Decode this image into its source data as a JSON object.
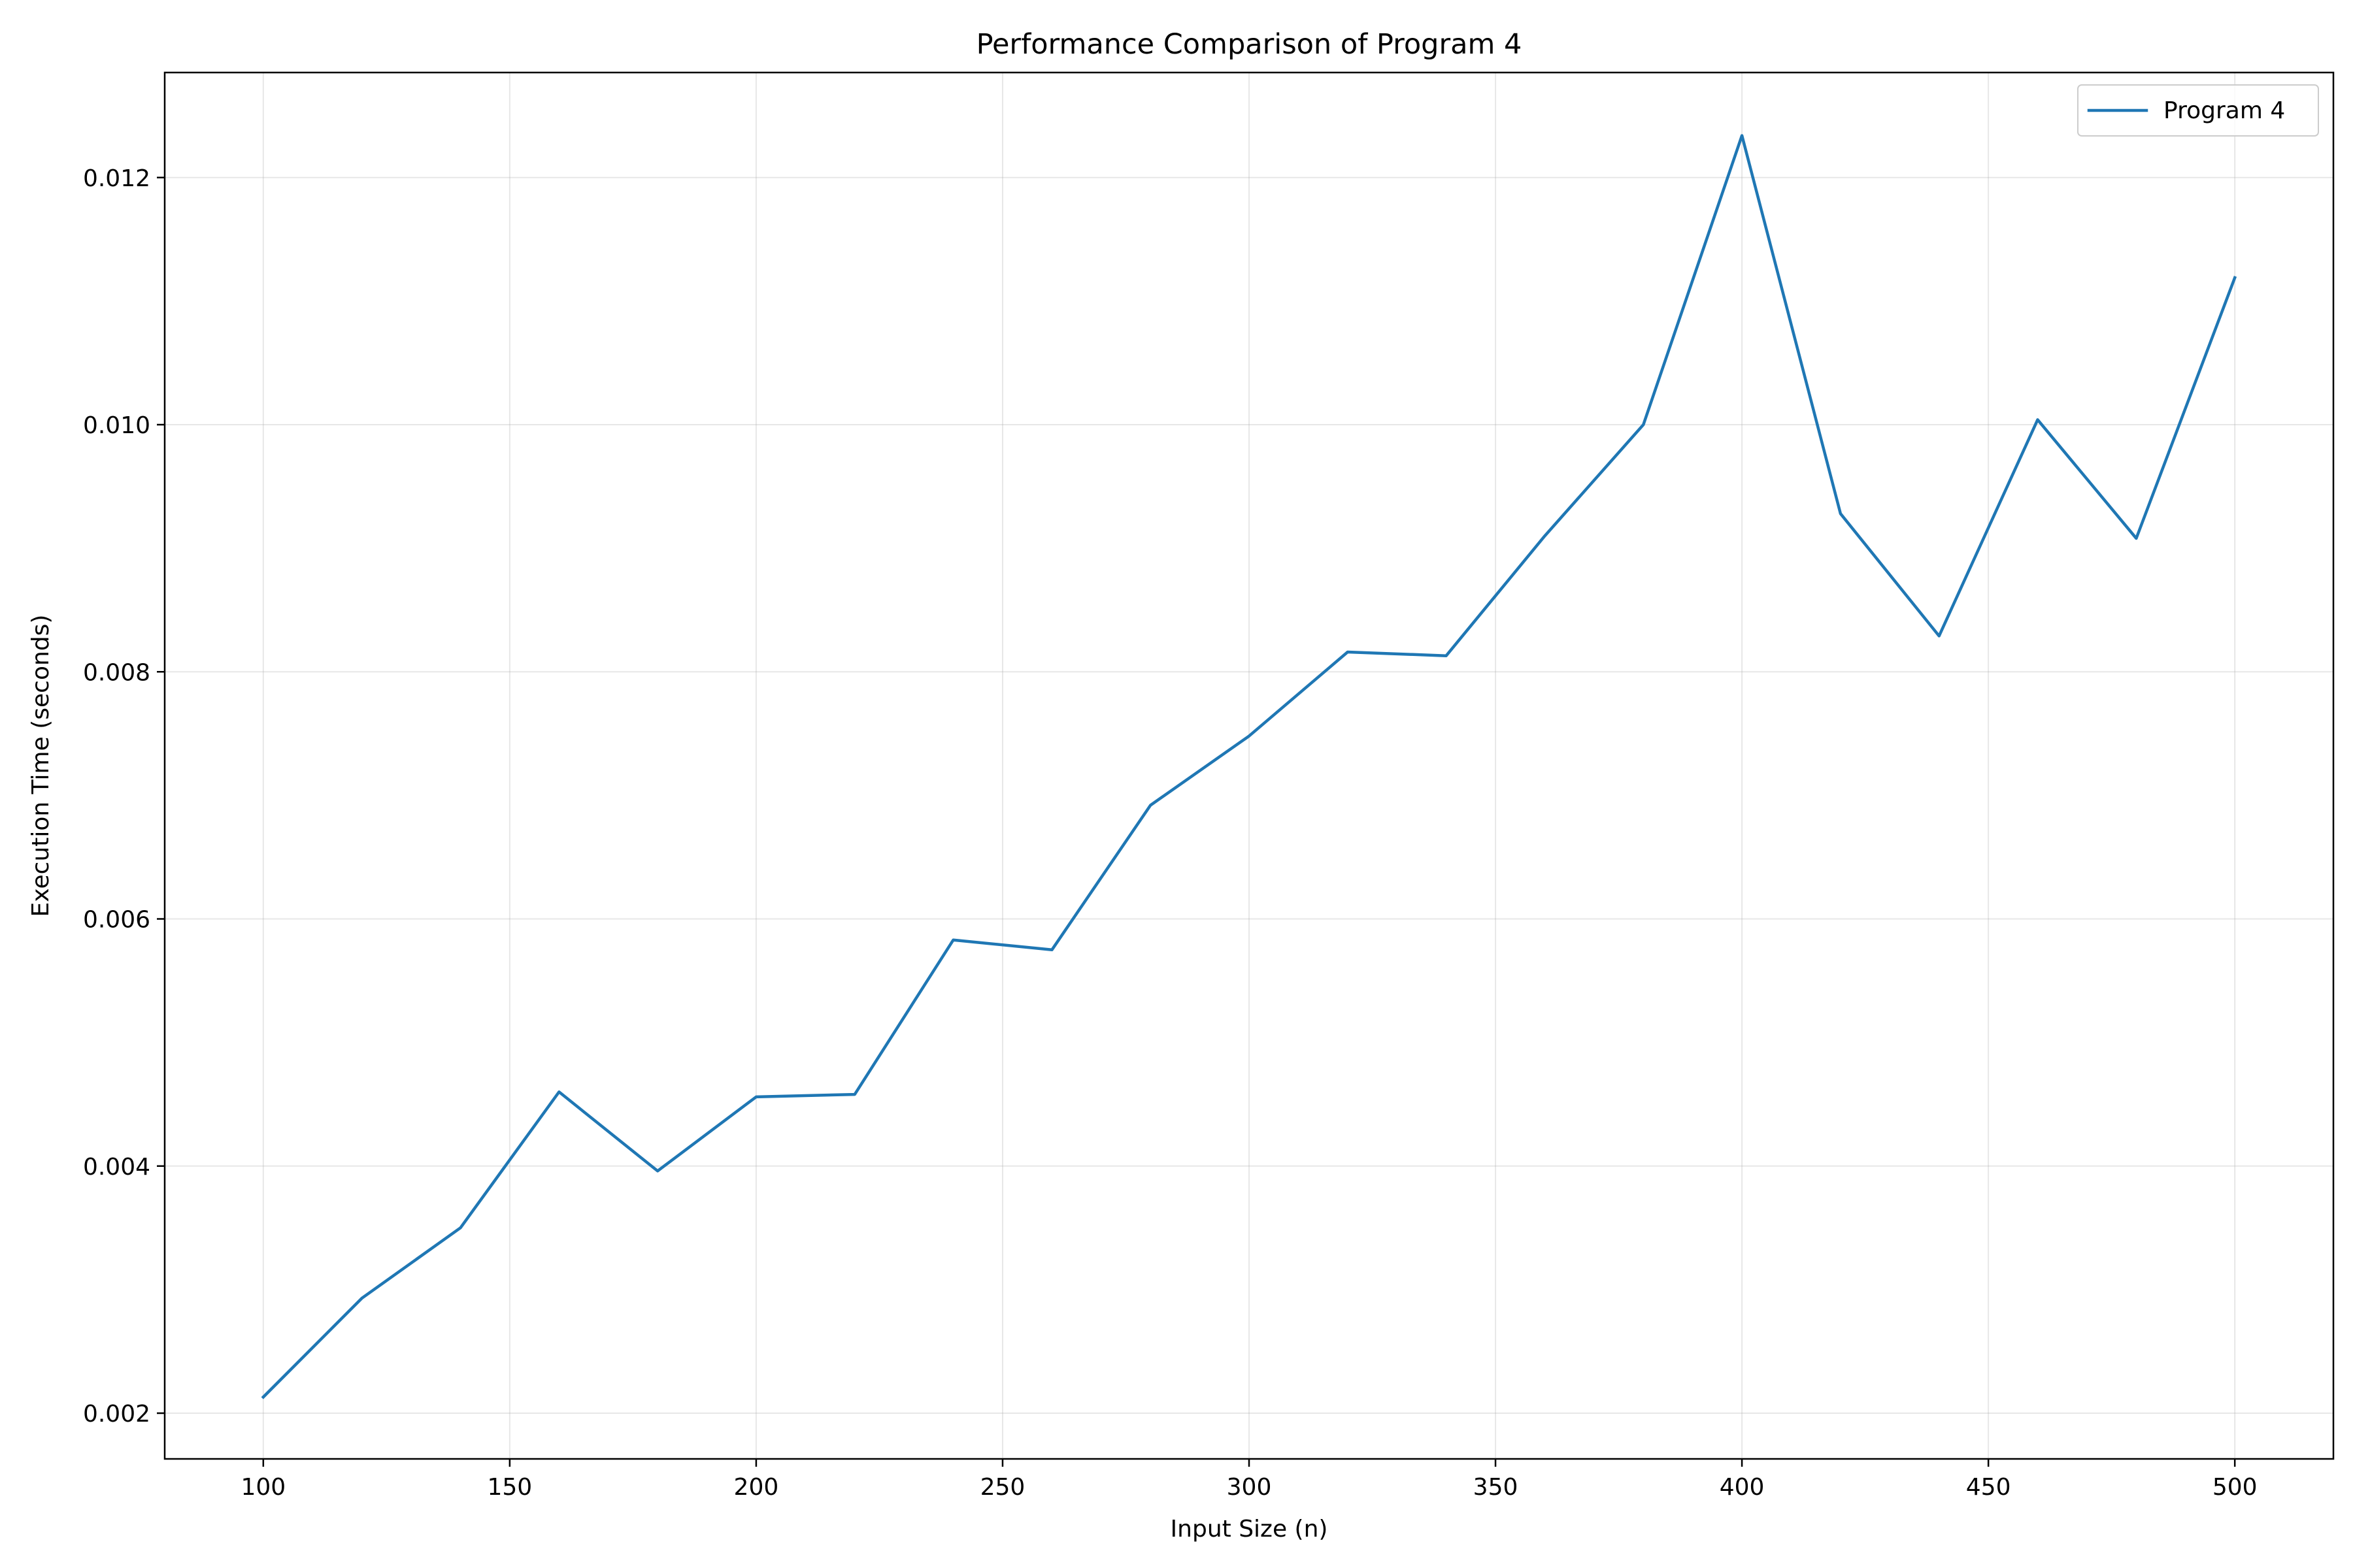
{
  "chart_data": {
    "type": "line",
    "title": "Performance Comparison of Program 4",
    "xlabel": "Input Size (n)",
    "ylabel": "Execution Time (seconds)",
    "xlim": [
      80,
      520
    ],
    "ylim": [
      0.00163,
      0.01285
    ],
    "xticks": [
      100,
      150,
      200,
      250,
      300,
      350,
      400,
      450,
      500
    ],
    "xtick_labels": [
      "100",
      "150",
      "200",
      "250",
      "300",
      "350",
      "400",
      "450",
      "500"
    ],
    "yticks": [
      0.002,
      0.004,
      0.006,
      0.008,
      0.01,
      0.012
    ],
    "ytick_labels": [
      "0.002",
      "0.004",
      "0.006",
      "0.008",
      "0.010",
      "0.012"
    ],
    "grid": true,
    "legend_position": "top-right",
    "x": [
      100,
      120,
      140,
      160,
      180,
      200,
      220,
      240,
      260,
      280,
      300,
      320,
      340,
      360,
      380,
      400,
      420,
      440,
      460,
      480,
      500
    ],
    "series": [
      {
        "name": "Program 4",
        "color": "#1f77b4",
        "values": [
          0.00213,
          0.00293,
          0.0035,
          0.0046,
          0.00396,
          0.00456,
          0.00458,
          0.00583,
          0.00575,
          0.00692,
          0.00748,
          0.00816,
          0.00813,
          0.0091,
          0.01,
          0.01234,
          0.00928,
          0.00829,
          0.01004,
          0.00908,
          0.01119
        ]
      }
    ]
  }
}
